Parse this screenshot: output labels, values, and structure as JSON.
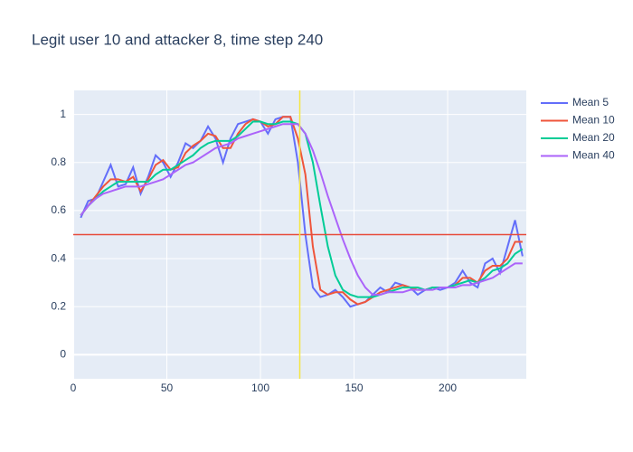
{
  "chart_data": {
    "type": "line",
    "title": "Legit user 10 and attacker 8, time step 240",
    "x": [
      4,
      8,
      12,
      16,
      20,
      24,
      28,
      32,
      36,
      40,
      44,
      48,
      52,
      56,
      60,
      64,
      68,
      72,
      76,
      80,
      84,
      88,
      92,
      96,
      100,
      104,
      108,
      112,
      116,
      120,
      124,
      128,
      132,
      136,
      140,
      144,
      148,
      152,
      156,
      160,
      164,
      168,
      172,
      176,
      180,
      184,
      188,
      192,
      196,
      200,
      204,
      208,
      212,
      216,
      220,
      224,
      228,
      232,
      236,
      240
    ],
    "series": [
      {
        "name": "Mean 5",
        "color": "#636efa",
        "values": [
          0.57,
          0.64,
          0.65,
          0.72,
          0.79,
          0.7,
          0.71,
          0.78,
          0.67,
          0.74,
          0.83,
          0.8,
          0.74,
          0.8,
          0.88,
          0.86,
          0.89,
          0.95,
          0.9,
          0.8,
          0.9,
          0.96,
          0.97,
          0.98,
          0.97,
          0.92,
          0.98,
          0.99,
          0.99,
          0.8,
          0.5,
          0.28,
          0.24,
          0.25,
          0.27,
          0.24,
          0.2,
          0.21,
          0.22,
          0.25,
          0.28,
          0.26,
          0.3,
          0.29,
          0.28,
          0.25,
          0.27,
          0.28,
          0.27,
          0.28,
          0.3,
          0.35,
          0.3,
          0.28,
          0.38,
          0.4,
          0.34,
          0.45,
          0.56,
          0.41
        ]
      },
      {
        "name": "Mean 10",
        "color": "#ef553b",
        "values": [
          0.58,
          0.62,
          0.66,
          0.7,
          0.73,
          0.73,
          0.72,
          0.74,
          0.68,
          0.73,
          0.79,
          0.81,
          0.77,
          0.78,
          0.84,
          0.87,
          0.89,
          0.92,
          0.91,
          0.86,
          0.86,
          0.92,
          0.96,
          0.98,
          0.97,
          0.95,
          0.96,
          0.99,
          0.99,
          0.9,
          0.75,
          0.45,
          0.27,
          0.25,
          0.26,
          0.26,
          0.23,
          0.21,
          0.22,
          0.24,
          0.26,
          0.27,
          0.28,
          0.29,
          0.28,
          0.27,
          0.27,
          0.28,
          0.28,
          0.28,
          0.29,
          0.32,
          0.32,
          0.3,
          0.35,
          0.37,
          0.37,
          0.4,
          0.47,
          0.47
        ]
      },
      {
        "name": "Mean 20",
        "color": "#00cc96",
        "values": [
          0.58,
          0.62,
          0.65,
          0.68,
          0.7,
          0.72,
          0.72,
          0.72,
          0.72,
          0.72,
          0.75,
          0.77,
          0.77,
          0.79,
          0.81,
          0.83,
          0.86,
          0.88,
          0.89,
          0.89,
          0.89,
          0.91,
          0.94,
          0.97,
          0.97,
          0.96,
          0.96,
          0.97,
          0.97,
          0.96,
          0.92,
          0.8,
          0.62,
          0.45,
          0.33,
          0.27,
          0.25,
          0.24,
          0.24,
          0.24,
          0.25,
          0.26,
          0.27,
          0.28,
          0.28,
          0.28,
          0.27,
          0.28,
          0.28,
          0.28,
          0.29,
          0.3,
          0.31,
          0.3,
          0.32,
          0.35,
          0.36,
          0.38,
          0.42,
          0.44
        ]
      },
      {
        "name": "Mean 40",
        "color": "#ab63fa",
        "values": [
          0.58,
          0.62,
          0.65,
          0.67,
          0.68,
          0.69,
          0.7,
          0.7,
          0.7,
          0.71,
          0.72,
          0.73,
          0.75,
          0.77,
          0.79,
          0.8,
          0.82,
          0.84,
          0.86,
          0.87,
          0.88,
          0.9,
          0.91,
          0.92,
          0.93,
          0.94,
          0.95,
          0.96,
          0.96,
          0.96,
          0.92,
          0.85,
          0.76,
          0.66,
          0.57,
          0.48,
          0.4,
          0.33,
          0.28,
          0.25,
          0.25,
          0.26,
          0.26,
          0.26,
          0.27,
          0.27,
          0.27,
          0.27,
          0.28,
          0.28,
          0.28,
          0.29,
          0.29,
          0.3,
          0.31,
          0.32,
          0.34,
          0.36,
          0.38,
          0.38
        ]
      }
    ],
    "hline": {
      "value": 0.5,
      "color": "#e74c3c"
    },
    "vline": {
      "value": 121,
      "color": "#f5e642"
    },
    "xlim": [
      0,
      242
    ],
    "xticks": [
      0,
      50,
      100,
      150,
      200
    ],
    "ylim": [
      -0.1,
      1.1
    ],
    "yticks": [
      0,
      0.2,
      0.4,
      0.6,
      0.8,
      1
    ],
    "grid": true,
    "legend": "right"
  }
}
